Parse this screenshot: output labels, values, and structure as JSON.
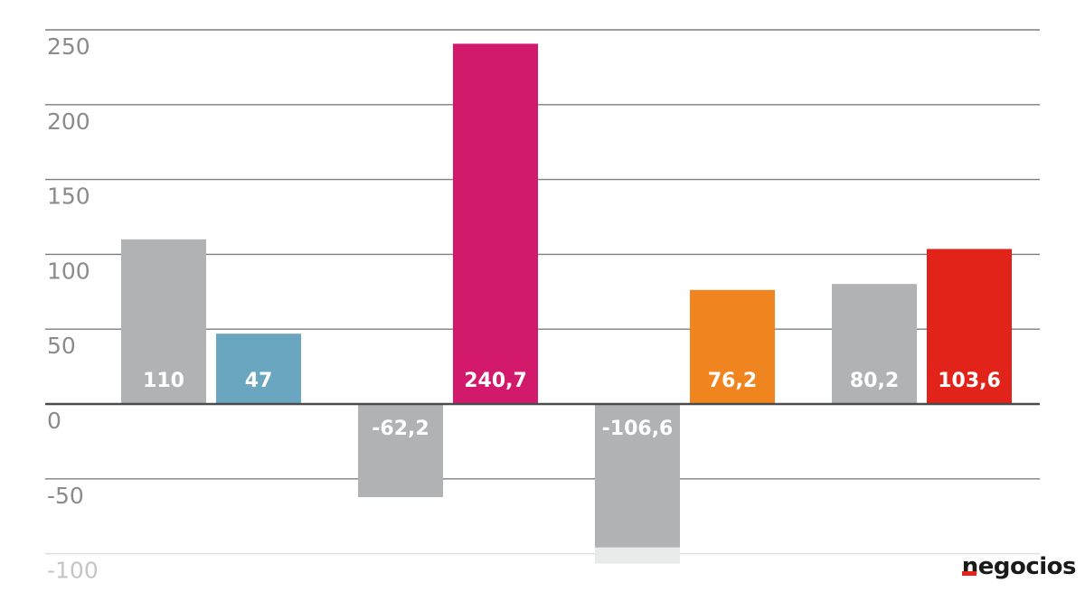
{
  "chart_data": {
    "type": "bar",
    "ylim": [
      -100,
      250
    ],
    "yticks": [
      "250",
      "200",
      "150",
      "100",
      "50",
      "0",
      "-50",
      "-100"
    ],
    "grid": true,
    "bars": [
      {
        "value": 110,
        "label": "110",
        "color": "#b1b2b4"
      },
      {
        "value": 47,
        "label": "47",
        "color": "#6aa6c0"
      },
      {
        "value": -62.2,
        "label": "-62,2",
        "color": "#b1b2b4"
      },
      {
        "value": 240.7,
        "label": "240,7",
        "color": "#d2196b"
      },
      {
        "value": -106.6,
        "label": "-106,6",
        "color": "#b1b2b4"
      },
      {
        "value": 76.2,
        "label": "76,2",
        "color": "#f0841f"
      },
      {
        "value": 80.2,
        "label": "80,2",
        "color": "#b1b2b4"
      },
      {
        "value": 103.6,
        "label": "103,6",
        "color": "#e2231a"
      }
    ]
  },
  "logo": {
    "text": "negocios"
  }
}
